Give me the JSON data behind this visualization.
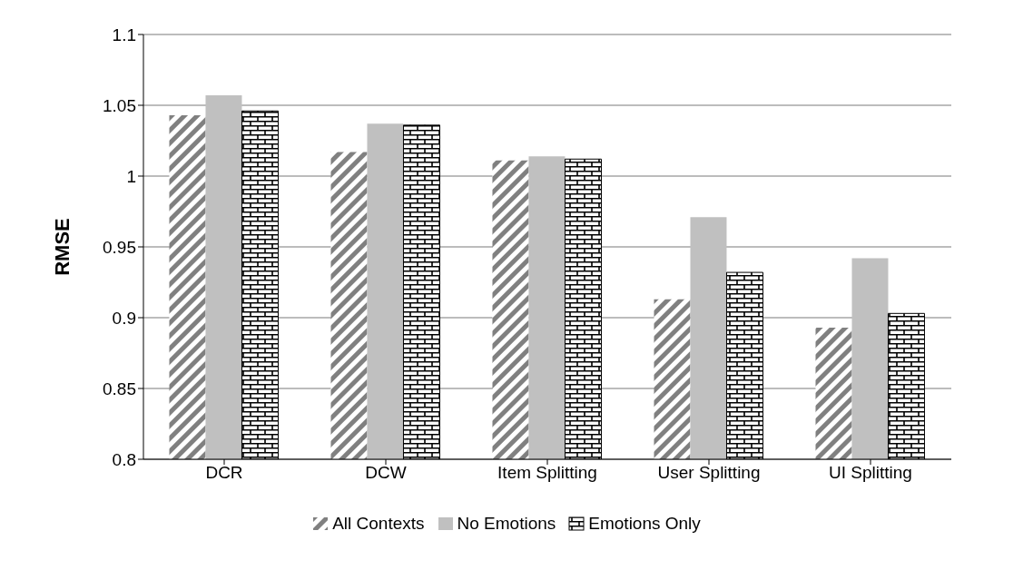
{
  "chart_data": {
    "type": "bar",
    "ylabel": "RMSE",
    "categories": [
      "DCR",
      "DCW",
      "Item Splitting",
      "User Splitting",
      "UI Splitting"
    ],
    "series": [
      {
        "name": "All Contexts",
        "color": "#808080",
        "values": [
          1.043,
          1.017,
          1.011,
          0.913,
          0.893
        ]
      },
      {
        "name": "No Emotions",
        "color": "#c0c0c0",
        "values": [
          1.057,
          1.037,
          1.014,
          0.971,
          0.942
        ]
      },
      {
        "name": "Emotions Only",
        "color": "#000000",
        "values": [
          1.046,
          1.036,
          1.012,
          0.932,
          0.903
        ]
      }
    ],
    "ylim": [
      0.8,
      1.1
    ],
    "yticks": [
      0.8,
      0.85,
      0.9,
      0.95,
      1,
      1.05,
      1.1
    ],
    "grid": "y",
    "legend": "bottom"
  }
}
